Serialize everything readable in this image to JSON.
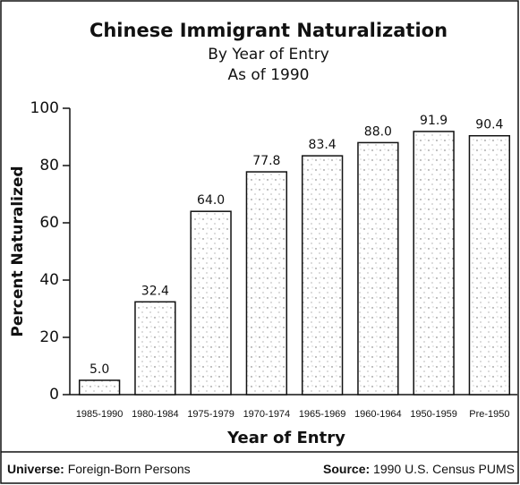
{
  "chart_data": {
    "type": "bar",
    "title": "Chinese Immigrant Naturalization",
    "subtitle": [
      "By Year of Entry",
      "As of 1990"
    ],
    "y_label": "Percent Naturalized",
    "x_label": "Year of Entry",
    "categories": [
      "1985-1990",
      "1980-1984",
      "1975-1979",
      "1970-1974",
      "1965-1969",
      "1960-1964",
      "1950-1959",
      "Pre-1950"
    ],
    "values": [
      5.0,
      32.4,
      64.0,
      77.8,
      83.4,
      88.0,
      91.9,
      90.4
    ],
    "value_labels": [
      "5.0",
      "32.4",
      "64.0",
      "77.8",
      "83.4",
      "88.0",
      "91.9",
      "90.4"
    ],
    "color": "#ffffff",
    "ylim": [
      0,
      100
    ],
    "yticks": [
      0,
      20,
      40,
      60,
      80,
      100
    ],
    "grid": false
  },
  "footer": {
    "universe_label": "Universe:",
    "universe": "Foreign-Born Persons",
    "source_label": "Source:",
    "source": "1990 U.S. Census PUMS"
  }
}
